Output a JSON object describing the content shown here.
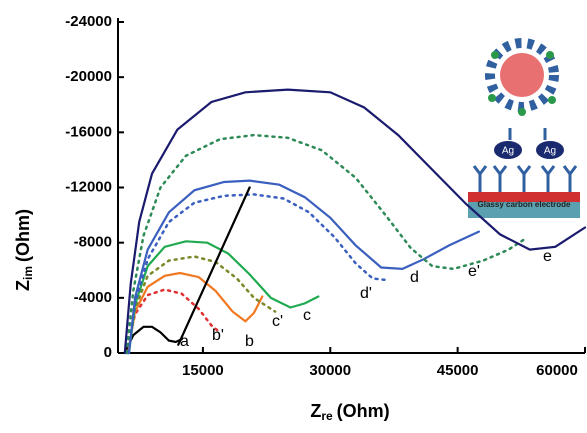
{
  "chart_data": {
    "type": "line",
    "x_label": {
      "main": "Z",
      "sub": "re",
      "unit": "(Ohm)"
    },
    "y_label": {
      "main": "Z",
      "sub": "im",
      "unit": "(Ohm)"
    },
    "xlim": [
      5000,
      60000
    ],
    "xticks": [
      15000,
      30000,
      45000,
      60000
    ],
    "ylim": [
      0,
      -24000
    ],
    "yticks": [
      0,
      -4000,
      -8000,
      -12000,
      -16000,
      -20000,
      -24000
    ],
    "series": [
      {
        "name": "a",
        "color": "#000000",
        "dash": false,
        "x": [
          5800,
          6800,
          8000,
          9000,
          10000,
          11000,
          11800,
          12500
        ],
        "values": [
          0,
          -1300,
          -1900,
          -1900,
          -1500,
          -900,
          -800,
          -1000
        ]
      },
      {
        "name": "b'",
        "color": "#e03030",
        "dash": true,
        "x": [
          6000,
          7000,
          8500,
          10500,
          12500,
          14500,
          16000,
          17000
        ],
        "values": [
          0,
          -2800,
          -4200,
          -4600,
          -4300,
          -3200,
          -2000,
          -1500
        ]
      },
      {
        "name": "b",
        "color": "#f07820",
        "dash": false,
        "x": [
          6200,
          7000,
          8500,
          10500,
          12300,
          14500,
          16500,
          18500,
          20000,
          21000,
          22000
        ],
        "values": [
          0,
          -3000,
          -4800,
          -5600,
          -5800,
          -5500,
          -4500,
          -3000,
          -2300,
          -2900,
          -4100
        ]
      },
      {
        "name": "c'",
        "color": "#7a8a2a",
        "dash": true,
        "x": [
          6200,
          7000,
          8500,
          11000,
          14000,
          16500,
          19000,
          21000,
          23500
        ],
        "values": [
          0,
          -3200,
          -5600,
          -6700,
          -7000,
          -6600,
          -5400,
          -4000,
          -3000
        ]
      },
      {
        "name": "c",
        "color": "#1faa50",
        "dash": false,
        "x": [
          6300,
          7000,
          8500,
          10500,
          13000,
          15500,
          18000,
          20500,
          23000,
          25300,
          27000,
          28600
        ],
        "values": [
          0,
          -3500,
          -6300,
          -7700,
          -8100,
          -8000,
          -7200,
          -5700,
          -4000,
          -3300,
          -3600,
          -4100
        ]
      },
      {
        "name": "d'",
        "color": "#3a5fbf",
        "dash": true,
        "x": [
          6200,
          7000,
          8500,
          11000,
          14000,
          17500,
          21000,
          24500,
          27500,
          30500,
          33000,
          35000,
          36500
        ],
        "values": [
          0,
          -3600,
          -6800,
          -9500,
          -10900,
          -11400,
          -11500,
          -11200,
          -10200,
          -8400,
          -6500,
          -5400,
          -5300
        ]
      },
      {
        "name": "d",
        "color": "#3a5fbf",
        "dash": false,
        "x": [
          6300,
          7000,
          8500,
          11000,
          14000,
          17500,
          20500,
          24000,
          27000,
          30000,
          33000,
          36000,
          38500,
          41000,
          44000,
          47500
        ],
        "values": [
          0,
          -4000,
          -7500,
          -10200,
          -11800,
          -12400,
          -12500,
          -12200,
          -11300,
          -9800,
          -7800,
          -6200,
          -6100,
          -6800,
          -7800,
          -8800
        ]
      },
      {
        "name": "e'",
        "color": "#2e8b57",
        "dash": true,
        "x": [
          6000,
          6800,
          8000,
          10000,
          13000,
          17000,
          21000,
          25000,
          29000,
          33000,
          36500,
          39500,
          42000,
          44500,
          48000,
          51000,
          53000
        ],
        "values": [
          0,
          -4500,
          -8500,
          -12000,
          -14300,
          -15500,
          -15800,
          -15600,
          -14700,
          -12700,
          -10000,
          -7600,
          -6300,
          -6100,
          -6700,
          -7500,
          -8300
        ]
      },
      {
        "name": "e",
        "color": "#1a1a6e",
        "dash": false,
        "x": [
          5800,
          6500,
          7500,
          9000,
          12000,
          16000,
          20000,
          25000,
          30000,
          34000,
          38000,
          42000,
          46000,
          50000,
          53500,
          56500,
          60000
        ],
        "values": [
          0,
          -5000,
          -9500,
          -13000,
          -16200,
          -18200,
          -18900,
          -19100,
          -18900,
          -17800,
          -15800,
          -13300,
          -10800,
          -8600,
          -7500,
          -7700,
          -9100
        ]
      },
      {
        "color": "#000000",
        "dash": false,
        "x": [
          12100,
          20500
        ],
        "values": [
          -600,
          -12000
        ]
      }
    ]
  },
  "inset": {
    "labels": [
      "Ag",
      "Ag"
    ],
    "electrode": "Glassy carbon electrode"
  }
}
